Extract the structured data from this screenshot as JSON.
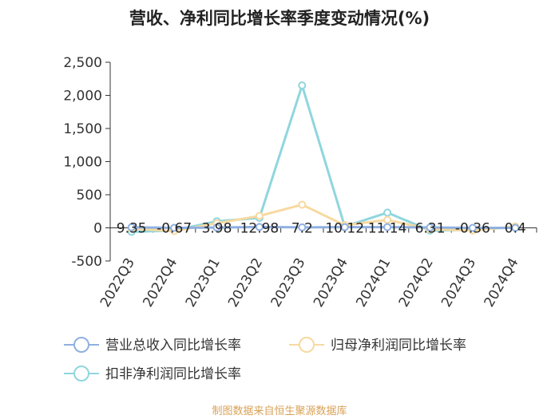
{
  "title": "营收、净利同比增长率季度变动情况(%)",
  "footer": "制图数据来自恒生聚源数据库",
  "colors": {
    "revenue": "#8fb0e0",
    "net_profit": "#f7d9a0",
    "deducted": "#8fd6de",
    "axis": "#333333",
    "footer": "#d8a257",
    "label_text": "#222222"
  },
  "chart_data": {
    "type": "line",
    "categories": [
      "2022Q3",
      "2022Q4",
      "2023Q1",
      "2023Q2",
      "2023Q3",
      "2023Q4",
      "2024Q1",
      "2024Q2",
      "2024Q3",
      "2024Q4"
    ],
    "ylim": [
      -500,
      2500
    ],
    "yticks": [
      -500,
      0,
      500,
      1000,
      1500,
      2000,
      2500
    ],
    "ytick_labels": [
      "-500",
      "0",
      "500",
      "1,000",
      "1,500",
      "2,000",
      "2,500"
    ],
    "grid": false,
    "legend_position": "bottom",
    "series": [
      {
        "name": "营业总收入同比增长率",
        "color_key": "revenue",
        "values": [
          9.35,
          -0.67,
          3.98,
          12.98,
          7.2,
          10.12,
          11.14,
          6.31,
          -0.36,
          0.4
        ],
        "data_labels": [
          "9.35",
          "-0.67",
          "3.98",
          "12.98",
          "7.2",
          "10.12",
          "11.14",
          "6.31",
          "-0.36",
          "0.4"
        ]
      },
      {
        "name": "归母净利润同比增长率",
        "color_key": "net_profit",
        "values": [
          -10,
          -50,
          70,
          180,
          350,
          40,
          120,
          -20,
          -40,
          20
        ]
      },
      {
        "name": "扣非净利润同比增长率",
        "color_key": "deducted",
        "values": [
          -60,
          -40,
          100,
          150,
          2150,
          20,
          230,
          -40,
          -30,
          10
        ]
      }
    ]
  }
}
